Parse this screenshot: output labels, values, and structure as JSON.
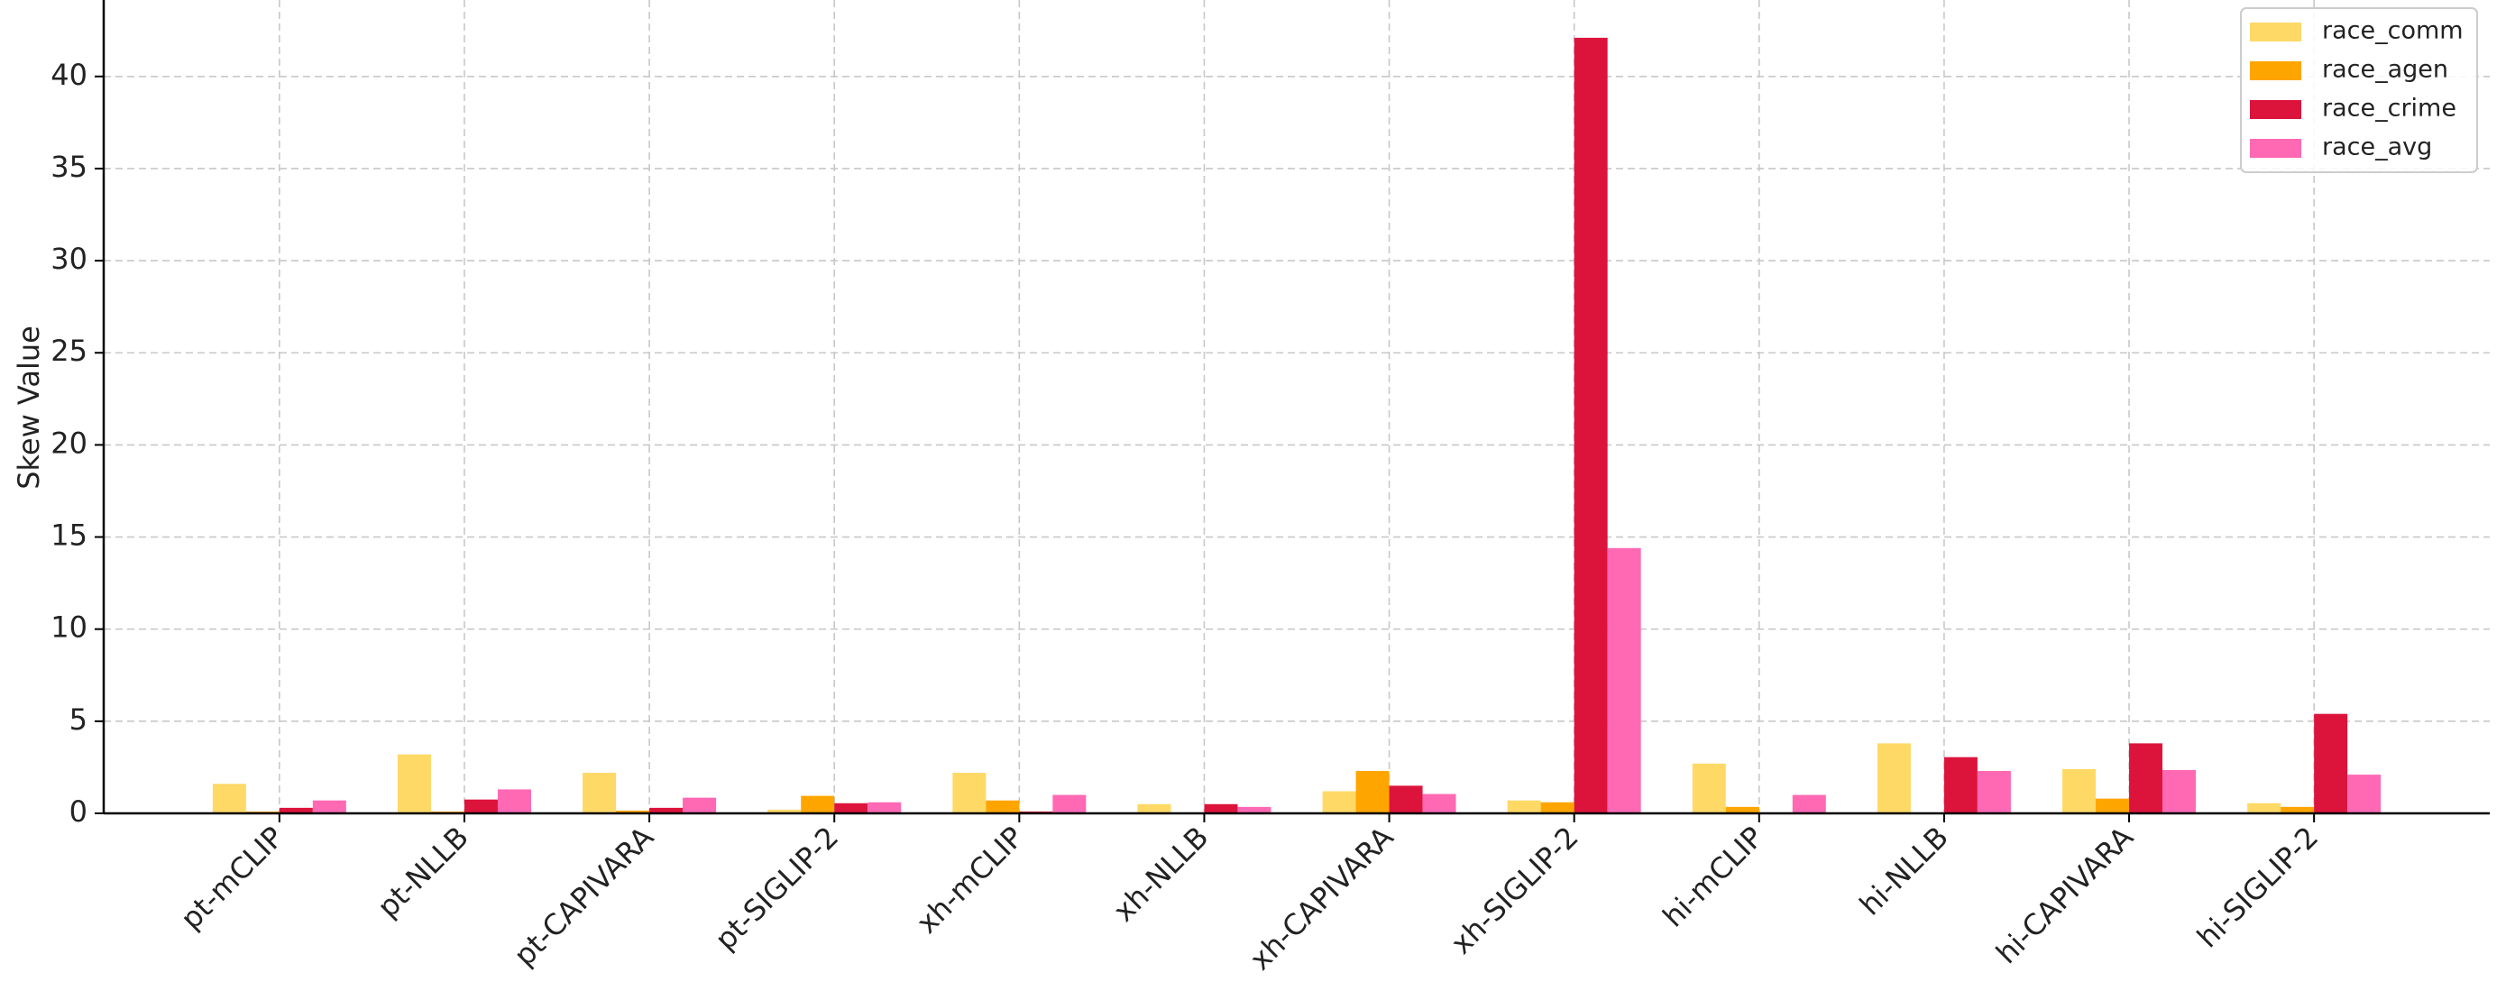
{
  "chart_data": {
    "type": "bar",
    "y_label": "Skew Value",
    "categories": [
      "pt-mCLIP",
      "pt-NLLB",
      "pt-CAPIVARA",
      "pt-SIGLIP-2",
      "xh-mCLIP",
      "xh-NLLB",
      "xh-CAPIVARA",
      "xh-SIGLIP-2",
      "hi-mCLIP",
      "hi-NLLB",
      "hi-CAPIVARA",
      "hi-SIGLIP-2"
    ],
    "series": [
      {
        "name": "race_comm",
        "color": "#ffd966",
        "values": [
          1.6,
          3.2,
          2.2,
          0.2,
          2.2,
          0.5,
          1.2,
          0.7,
          2.7,
          3.8,
          2.4,
          0.55
        ]
      },
      {
        "name": "race_agen",
        "color": "#ffa500",
        "values": [
          0.1,
          0.1,
          0.15,
          0.95,
          0.7,
          0.0,
          2.3,
          0.6,
          0.35,
          0.0,
          0.8,
          0.35
        ]
      },
      {
        "name": "race_crime",
        "color": "#dc143c",
        "values": [
          0.3,
          0.75,
          0.3,
          0.55,
          0.1,
          0.5,
          1.5,
          42.1,
          0.05,
          3.05,
          3.8,
          5.4
        ]
      },
      {
        "name": "race_avg",
        "color": "#ff69b4",
        "values": [
          0.7,
          1.3,
          0.85,
          0.6,
          1.0,
          0.35,
          1.05,
          14.4,
          1.0,
          2.3,
          2.35,
          2.1
        ]
      }
    ],
    "ylim": [
      0,
      44.15
    ],
    "yticks": [
      0,
      5,
      10,
      15,
      20,
      25,
      30,
      35,
      40
    ],
    "grid": true,
    "legend": "upper right"
  }
}
